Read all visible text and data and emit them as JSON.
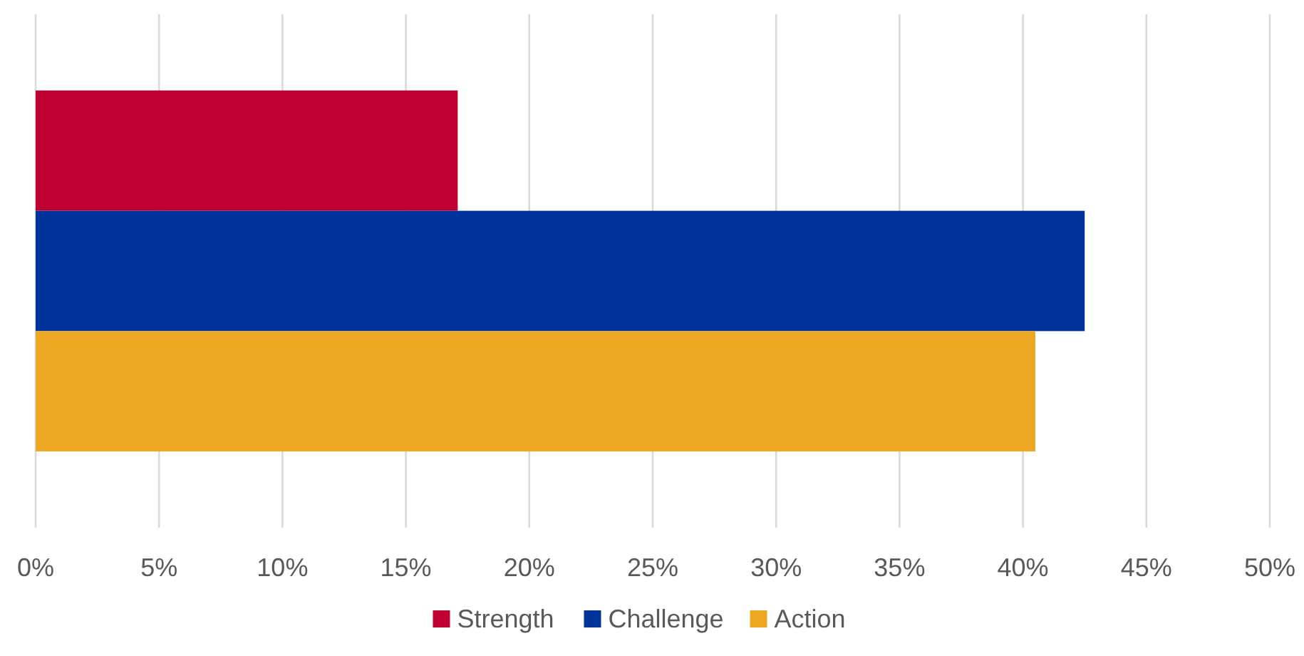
{
  "chart_data": {
    "type": "bar",
    "orientation": "horizontal",
    "categories": [
      null
    ],
    "series": [
      {
        "name": "Strength",
        "color": "#c00033",
        "values": [
          17.1
        ]
      },
      {
        "name": "Challenge",
        "color": "#003399",
        "values": [
          42.5
        ]
      },
      {
        "name": "Action",
        "color": "#eda823",
        "values": [
          40.5
        ]
      }
    ],
    "xlim": [
      0,
      50
    ],
    "xticks": [
      {
        "value": 0,
        "label": "0%"
      },
      {
        "value": 5,
        "label": "5%"
      },
      {
        "value": 10,
        "label": "10%"
      },
      {
        "value": 15,
        "label": "15%"
      },
      {
        "value": 20,
        "label": "20%"
      },
      {
        "value": 25,
        "label": "25%"
      },
      {
        "value": 30,
        "label": "30%"
      },
      {
        "value": 35,
        "label": "35%"
      },
      {
        "value": 40,
        "label": "40%"
      },
      {
        "value": 45,
        "label": "45%"
      },
      {
        "value": 50,
        "label": "50%"
      }
    ],
    "grid": "x",
    "legend": "bottom"
  }
}
